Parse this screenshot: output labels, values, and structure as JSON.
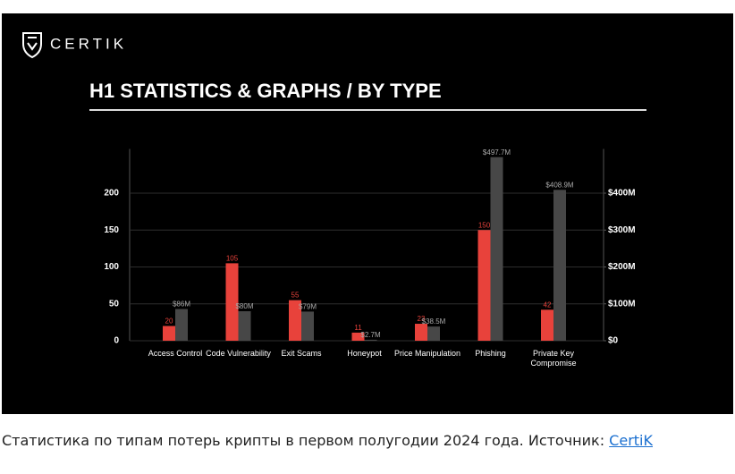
{
  "brand": "CERTIK",
  "chart_data": {
    "type": "bar",
    "title": "H1 STATISTICS & GRAPHS / BY TYPE",
    "categories": [
      "Access Control",
      "Code Vulnerability",
      "Exit Scams",
      "Honeypot",
      "Price Manipulation",
      "Phishing",
      "Private Key Compromise"
    ],
    "series": [
      {
        "color": "#e8423b",
        "values": [
          20,
          105,
          55,
          11,
          23,
          150,
          42
        ],
        "value_labels": [
          "20",
          "105",
          "55",
          "11",
          "23",
          "150",
          "42"
        ]
      },
      {
        "color": "#474747",
        "axis": "y2",
        "values": [
          86,
          80,
          79,
          2.7,
          38.5,
          497.7,
          408.9
        ],
        "value_labels": [
          "$86M",
          "$80M",
          "$79M",
          "$2.7M",
          "$38.5M",
          "$497.7M",
          "$408.9M"
        ]
      }
    ],
    "ylim": [
      0,
      260
    ],
    "yticks": [
      0,
      50,
      100,
      150,
      200
    ],
    "y2lim": [
      0,
      520
    ],
    "y2ticks": [
      {
        "value": 0,
        "label": "$0"
      },
      {
        "value": 100,
        "label": "$100M"
      },
      {
        "value": 200,
        "label": "$200M"
      },
      {
        "value": 300,
        "label": "$300M"
      },
      {
        "value": 400,
        "label": "$400M"
      }
    ],
    "grid": true
  },
  "caption": {
    "text": "Статистика по типам потерь крипты в первом полугодии 2024 года. Источник: ",
    "link": "CertiK"
  }
}
